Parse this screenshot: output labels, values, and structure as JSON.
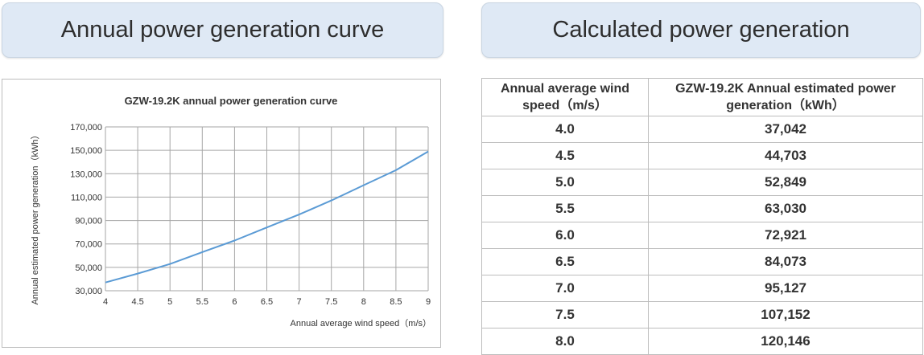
{
  "headers": {
    "left": "Annual power generation curve",
    "right": "Calculated power generation"
  },
  "chart_data": {
    "type": "line",
    "title": "GZW-19.2K annual power generation curve",
    "xlabel": "Annual average wind speed（m/s）",
    "ylabel": "Annual estimated power generation（kWh）",
    "xlim": [
      4,
      9
    ],
    "ylim": [
      30000,
      170000
    ],
    "x_ticks": [
      "4",
      "4.5",
      "5",
      "5.5",
      "6",
      "6.5",
      "7",
      "7.5",
      "8",
      "8.5",
      "9"
    ],
    "y_ticks": [
      "30,000",
      "50,000",
      "70,000",
      "90,000",
      "110,000",
      "130,000",
      "150,000",
      "170,000"
    ],
    "grid": true,
    "line_color": "#5b9bd5",
    "series": [
      {
        "x": [
          4.0,
          4.5,
          5.0,
          5.5,
          6.0,
          6.5,
          7.0,
          7.5,
          8.0,
          8.5,
          9.0
        ],
        "values": [
          37042,
          44703,
          52849,
          63030,
          72921,
          84073,
          95127,
          107152,
          120146,
          133000,
          149000
        ]
      }
    ]
  },
  "table": {
    "col1_header": "Annual average wind speed（m/s）",
    "col2_header": "GZW-19.2K Annual estimated power generation（kWh）",
    "rows": [
      {
        "speed": "4.0",
        "power": "37,042"
      },
      {
        "speed": "4.5",
        "power": "44,703"
      },
      {
        "speed": "5.0",
        "power": "52,849"
      },
      {
        "speed": "5.5",
        "power": "63,030"
      },
      {
        "speed": "6.0",
        "power": "72,921"
      },
      {
        "speed": "6.5",
        "power": "84,073"
      },
      {
        "speed": "7.0",
        "power": "95,127"
      },
      {
        "speed": "7.5",
        "power": "107,152"
      },
      {
        "speed": "8.0",
        "power": "120,146"
      }
    ]
  }
}
